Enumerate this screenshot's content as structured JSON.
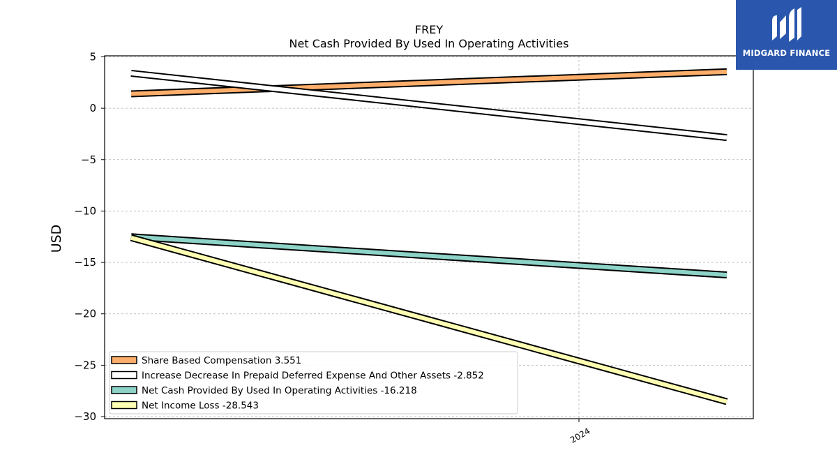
{
  "brand": {
    "name": "MIDGARD FINANCE",
    "bg_color": "#2a57ad"
  },
  "chart_data": {
    "type": "line",
    "title": "FREY",
    "subtitle": "Net Cash Provided By Used In Operating Activities",
    "xlabel": "",
    "ylabel": "USD",
    "x_tick_labels": [
      "2024"
    ],
    "y_ticks": [
      5,
      0,
      -5,
      -10,
      -15,
      -20,
      -25,
      -30
    ],
    "ylim": [
      -30.2,
      5.1
    ],
    "grid": true,
    "legend_position": "lower-left",
    "series": [
      {
        "name": "Share Based Compensation",
        "legend_label": "Share Based Compensation  3.551",
        "color": "#fdae6b",
        "values": [
          1.4,
          3.551
        ]
      },
      {
        "name": "Increase Decrease In Prepaid Deferred Expense And Other Assets",
        "legend_label": "Increase Decrease In Prepaid Deferred Expense And Other Assets  -2.852",
        "color": "#ffffff",
        "values": [
          3.4,
          -2.852
        ]
      },
      {
        "name": "Net Cash Provided By Used In Operating Activities",
        "legend_label": "Net Cash Provided By Used In Operating Activities  -16.218",
        "color": "#8dd3c7",
        "values": [
          -12.5,
          -16.218
        ]
      },
      {
        "name": "Net Income Loss",
        "legend_label": "Net Income Loss  -28.543",
        "color": "#ffffb3",
        "values": [
          -12.6,
          -28.543
        ]
      }
    ]
  }
}
